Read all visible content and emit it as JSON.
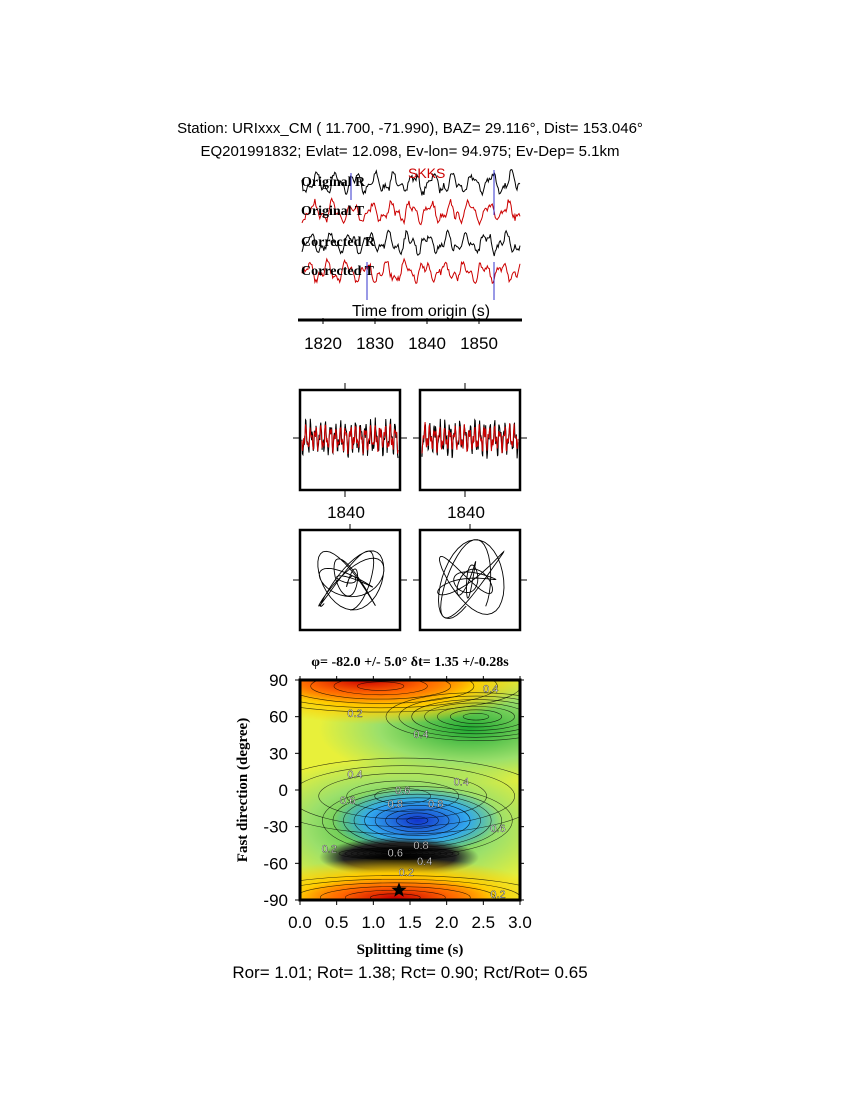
{
  "header": {
    "line1": "Station: URIxxx_CM (  11.700,  -71.990), BAZ=   29.116°, Dist=  153.046°",
    "line2": "EQ201991832; Evlat=  12.098, Ev-lon=  94.975; Ev-Dep=  5.1km"
  },
  "traces": {
    "phase_label": "SKKS",
    "labels": [
      "Original R",
      "Original T",
      "Corrected R",
      "Corrected T"
    ],
    "xlabel": "Time from origin (s)",
    "ticks": [
      "1820",
      "1830",
      "1840",
      "1850"
    ]
  },
  "waveform_panels": {
    "tick_labels": [
      "1840",
      "1840"
    ]
  },
  "colors": {
    "radial": "#000000",
    "transverse": "#cc0000",
    "window_marker": "#3333cc"
  },
  "chart_data": {
    "type": "heatmap",
    "title": "φ= -82.0 +/- 5.0° δt= 1.35 +/-0.28s",
    "xlabel": "Splitting time (s)",
    "ylabel": "Fast direction (degree)",
    "xlim": [
      0.0,
      3.0
    ],
    "ylim": [
      -90,
      90
    ],
    "x_ticks": [
      "0.0",
      "0.5",
      "1.0",
      "1.5",
      "2.0",
      "2.5",
      "3.0"
    ],
    "y_ticks": [
      "90",
      "60",
      "30",
      "0",
      "-30",
      "-60",
      "-90"
    ],
    "best": {
      "splitting_time": 1.35,
      "fast_direction": -82.0
    },
    "contour_labels": [
      {
        "text": "0.2",
        "x": 0.75,
        "y": 63
      },
      {
        "text": "0.4",
        "x": 2.6,
        "y": 83
      },
      {
        "text": "0.4",
        "x": 1.65,
        "y": 46
      },
      {
        "text": "0.4",
        "x": 0.75,
        "y": 13
      },
      {
        "text": "0.4",
        "x": 2.2,
        "y": 7
      },
      {
        "text": "0.6",
        "x": 0.65,
        "y": -8
      },
      {
        "text": "0.6",
        "x": 1.4,
        "y": 0
      },
      {
        "text": "0.8",
        "x": 1.3,
        "y": -11
      },
      {
        "text": "0.8",
        "x": 1.85,
        "y": -11
      },
      {
        "text": "0.6",
        "x": 2.7,
        "y": -31
      },
      {
        "text": "0.8",
        "x": 1.65,
        "y": -45
      },
      {
        "text": "0.2",
        "x": 0.4,
        "y": -48
      },
      {
        "text": "0.6",
        "x": 1.3,
        "y": -51
      },
      {
        "text": "0.4",
        "x": 1.7,
        "y": -58
      },
      {
        "text": "0.2",
        "x": 1.45,
        "y": -67
      },
      {
        "text": "0.2",
        "x": 2.7,
        "y": -85
      }
    ]
  },
  "footer": "Ror= 1.01; Rot= 1.38; Rct= 0.90; Rct/Rot= 0.65"
}
